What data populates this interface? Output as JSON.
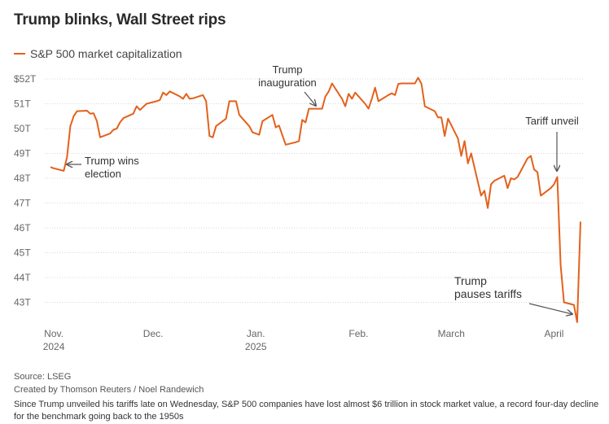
{
  "title": "Trump blinks, Wall Street rips",
  "legend_label": "S&P 500 market capitalization",
  "source": "Source: LSEG",
  "credit": "Created by Thomson Reuters / Noel Randewich",
  "note": "Since Trump unveiled his tariffs late on Wednesday, S&P 500 companies have lost almost $6 trillion in stock market value, a record four-day decline for the benchmark going back to the 1950s",
  "colors": {
    "line": "#e3611c",
    "grid": "#d8d8d8",
    "text": "#444444"
  },
  "chart_data": {
    "type": "line",
    "ylabel": "",
    "ylim": [
      42,
      52
    ],
    "yticks": [
      {
        "value": 52,
        "label": "$52T"
      },
      {
        "value": 51,
        "label": "51T"
      },
      {
        "value": 50,
        "label": "50T"
      },
      {
        "value": 49,
        "label": "49T"
      },
      {
        "value": 48,
        "label": "48T"
      },
      {
        "value": 47,
        "label": "47T"
      },
      {
        "value": 46,
        "label": "46T"
      },
      {
        "value": 45,
        "label": "45T"
      },
      {
        "value": 44,
        "label": "44T"
      },
      {
        "value": 43,
        "label": "43T"
      }
    ],
    "xlim": [
      "2024-10-31",
      "2025-04-09"
    ],
    "xticks": [
      {
        "date": "2024-11-01",
        "line1": "Nov.",
        "line2": "2024"
      },
      {
        "date": "2024-12-01",
        "line1": "Dec.",
        "line2": ""
      },
      {
        "date": "2025-01-01",
        "line1": "Jan.",
        "line2": "2025"
      },
      {
        "date": "2025-02-01",
        "line1": "Feb.",
        "line2": ""
      },
      {
        "date": "2025-03-01",
        "line1": "March",
        "line2": ""
      },
      {
        "date": "2025-04-01",
        "line1": "April",
        "line2": ""
      }
    ],
    "series": [
      {
        "name": "S&P 500 market capitalization",
        "points": [
          [
            "2024-10-31",
            48.45
          ],
          [
            "2024-11-01",
            48.4
          ],
          [
            "2024-11-04",
            48.3
          ],
          [
            "2024-11-05",
            48.85
          ],
          [
            "2024-11-06",
            50.1
          ],
          [
            "2024-11-07",
            50.5
          ],
          [
            "2024-11-08",
            50.7
          ],
          [
            "2024-11-11",
            50.72
          ],
          [
            "2024-11-12",
            50.6
          ],
          [
            "2024-11-13",
            50.62
          ],
          [
            "2024-11-14",
            50.3
          ],
          [
            "2024-11-15",
            49.65
          ],
          [
            "2024-11-18",
            49.8
          ],
          [
            "2024-11-19",
            49.95
          ],
          [
            "2024-11-20",
            50.0
          ],
          [
            "2024-11-21",
            50.25
          ],
          [
            "2024-11-22",
            50.42
          ],
          [
            "2024-11-25",
            50.6
          ],
          [
            "2024-11-26",
            50.9
          ],
          [
            "2024-11-27",
            50.75
          ],
          [
            "2024-11-29",
            51.0
          ],
          [
            "2024-12-02",
            51.1
          ],
          [
            "2024-12-03",
            51.15
          ],
          [
            "2024-12-04",
            51.45
          ],
          [
            "2024-12-05",
            51.35
          ],
          [
            "2024-12-06",
            51.5
          ],
          [
            "2024-12-09",
            51.3
          ],
          [
            "2024-12-10",
            51.2
          ],
          [
            "2024-12-11",
            51.4
          ],
          [
            "2024-12-12",
            51.2
          ],
          [
            "2024-12-13",
            51.22
          ],
          [
            "2024-12-16",
            51.35
          ],
          [
            "2024-12-17",
            51.1
          ],
          [
            "2024-12-18",
            49.7
          ],
          [
            "2024-12-19",
            49.65
          ],
          [
            "2024-12-20",
            50.1
          ],
          [
            "2024-12-23",
            50.4
          ],
          [
            "2024-12-24",
            51.1
          ],
          [
            "2024-12-26",
            51.1
          ],
          [
            "2024-12-27",
            50.55
          ],
          [
            "2024-12-30",
            50.1
          ],
          [
            "2024-12-31",
            49.85
          ],
          [
            "2025-01-02",
            49.75
          ],
          [
            "2025-01-03",
            50.3
          ],
          [
            "2025-01-06",
            50.55
          ],
          [
            "2025-01-07",
            50.05
          ],
          [
            "2025-01-08",
            50.12
          ],
          [
            "2025-01-10",
            49.35
          ],
          [
            "2025-01-13",
            49.45
          ],
          [
            "2025-01-14",
            49.5
          ],
          [
            "2025-01-15",
            50.35
          ],
          [
            "2025-01-16",
            50.25
          ],
          [
            "2025-01-17",
            50.8
          ],
          [
            "2025-01-21",
            50.8
          ],
          [
            "2025-01-22",
            51.3
          ],
          [
            "2025-01-23",
            51.5
          ],
          [
            "2025-01-24",
            51.82
          ],
          [
            "2025-01-27",
            51.2
          ],
          [
            "2025-01-28",
            50.9
          ],
          [
            "2025-01-29",
            51.4
          ],
          [
            "2025-01-30",
            51.2
          ],
          [
            "2025-01-31",
            51.45
          ],
          [
            "2025-02-03",
            51.0
          ],
          [
            "2025-02-04",
            50.8
          ],
          [
            "2025-02-05",
            51.2
          ],
          [
            "2025-02-06",
            51.65
          ],
          [
            "2025-02-07",
            51.1
          ],
          [
            "2025-02-10",
            51.35
          ],
          [
            "2025-02-11",
            51.42
          ],
          [
            "2025-02-12",
            51.35
          ],
          [
            "2025-02-13",
            51.8
          ],
          [
            "2025-02-14",
            51.82
          ],
          [
            "2025-02-18",
            51.82
          ],
          [
            "2025-02-19",
            52.05
          ],
          [
            "2025-02-20",
            51.8
          ],
          [
            "2025-02-21",
            50.9
          ],
          [
            "2025-02-24",
            50.7
          ],
          [
            "2025-02-25",
            50.45
          ],
          [
            "2025-02-26",
            50.45
          ],
          [
            "2025-02-27",
            49.7
          ],
          [
            "2025-02-28",
            50.4
          ],
          [
            "2025-03-03",
            49.6
          ],
          [
            "2025-03-04",
            48.9
          ],
          [
            "2025-03-05",
            49.5
          ],
          [
            "2025-03-06",
            48.6
          ],
          [
            "2025-03-07",
            49.0
          ],
          [
            "2025-03-10",
            47.3
          ],
          [
            "2025-03-11",
            47.5
          ],
          [
            "2025-03-12",
            46.8
          ],
          [
            "2025-03-13",
            47.75
          ],
          [
            "2025-03-14",
            47.9
          ],
          [
            "2025-03-17",
            48.1
          ],
          [
            "2025-03-18",
            47.6
          ],
          [
            "2025-03-19",
            48.0
          ],
          [
            "2025-03-20",
            47.95
          ],
          [
            "2025-03-21",
            48.05
          ],
          [
            "2025-03-24",
            48.8
          ],
          [
            "2025-03-25",
            48.9
          ],
          [
            "2025-03-26",
            48.35
          ],
          [
            "2025-03-27",
            48.25
          ],
          [
            "2025-03-28",
            47.3
          ],
          [
            "2025-03-31",
            47.6
          ],
          [
            "2025-04-01",
            47.75
          ],
          [
            "2025-04-02",
            48.05
          ],
          [
            "2025-04-03",
            44.5
          ],
          [
            "2025-04-04",
            43.0
          ],
          [
            "2025-04-07",
            42.9
          ],
          [
            "2025-04-08",
            42.2
          ],
          [
            "2025-04-09",
            46.25
          ]
        ]
      }
    ],
    "annotations": [
      {
        "text_lines": [
          "Trump wins",
          "election"
        ],
        "date": "2024-11-05",
        "value": 48.6,
        "arrow": "left"
      },
      {
        "text_lines": [
          "Trump",
          "inauguration"
        ],
        "date": "2025-01-20",
        "value": 50.8,
        "arrow": "down-diagonal"
      },
      {
        "text_lines": [
          "Tariff unveil"
        ],
        "date": "2025-04-02",
        "value": 48.05,
        "arrow": "down"
      },
      {
        "text_lines": [
          "Trump",
          "pauses tariffs"
        ],
        "date": "2025-04-08",
        "value": 42.2,
        "arrow": "down-diagonal"
      }
    ],
    "grid": true
  }
}
